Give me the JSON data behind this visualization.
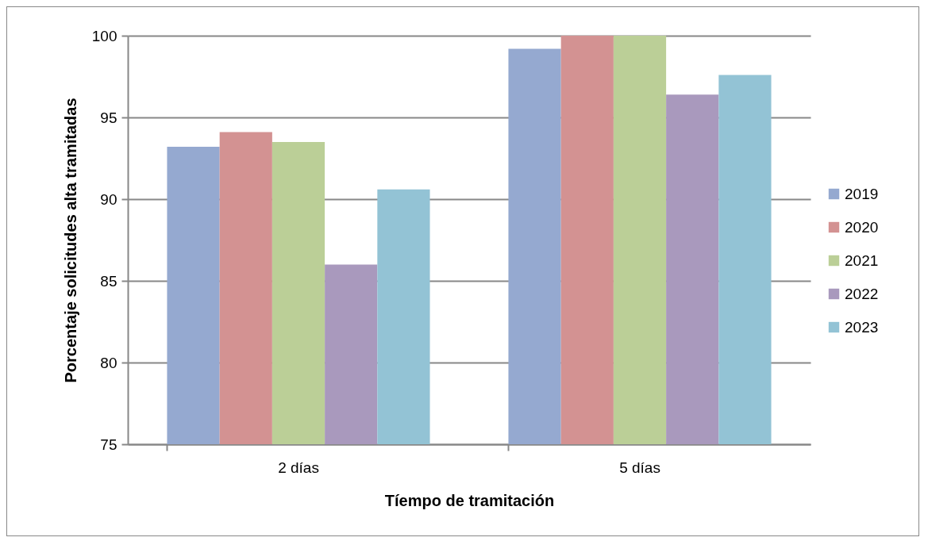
{
  "chart_data": {
    "type": "bar",
    "xlabel": "Tíempo de tramitación",
    "ylabel": "Porcentaje solicitudes alta tramitadas",
    "categories": [
      "2 días",
      "5 días"
    ],
    "series": [
      {
        "name": "2019",
        "color": "#95a9d0",
        "values": [
          93.2,
          99.2
        ]
      },
      {
        "name": "2020",
        "color": "#d39292",
        "values": [
          94.1,
          100
        ]
      },
      {
        "name": "2021",
        "color": "#bbcf97",
        "values": [
          93.5,
          100
        ]
      },
      {
        "name": "2022",
        "color": "#a999bd",
        "values": [
          86.0,
          96.4
        ]
      },
      {
        "name": "2023",
        "color": "#93c3d5",
        "values": [
          90.6,
          97.6
        ]
      }
    ],
    "ylim": [
      75,
      100
    ],
    "yticks": [
      75,
      80,
      85,
      90,
      95,
      100
    ],
    "grid": "y",
    "legend": "right"
  }
}
